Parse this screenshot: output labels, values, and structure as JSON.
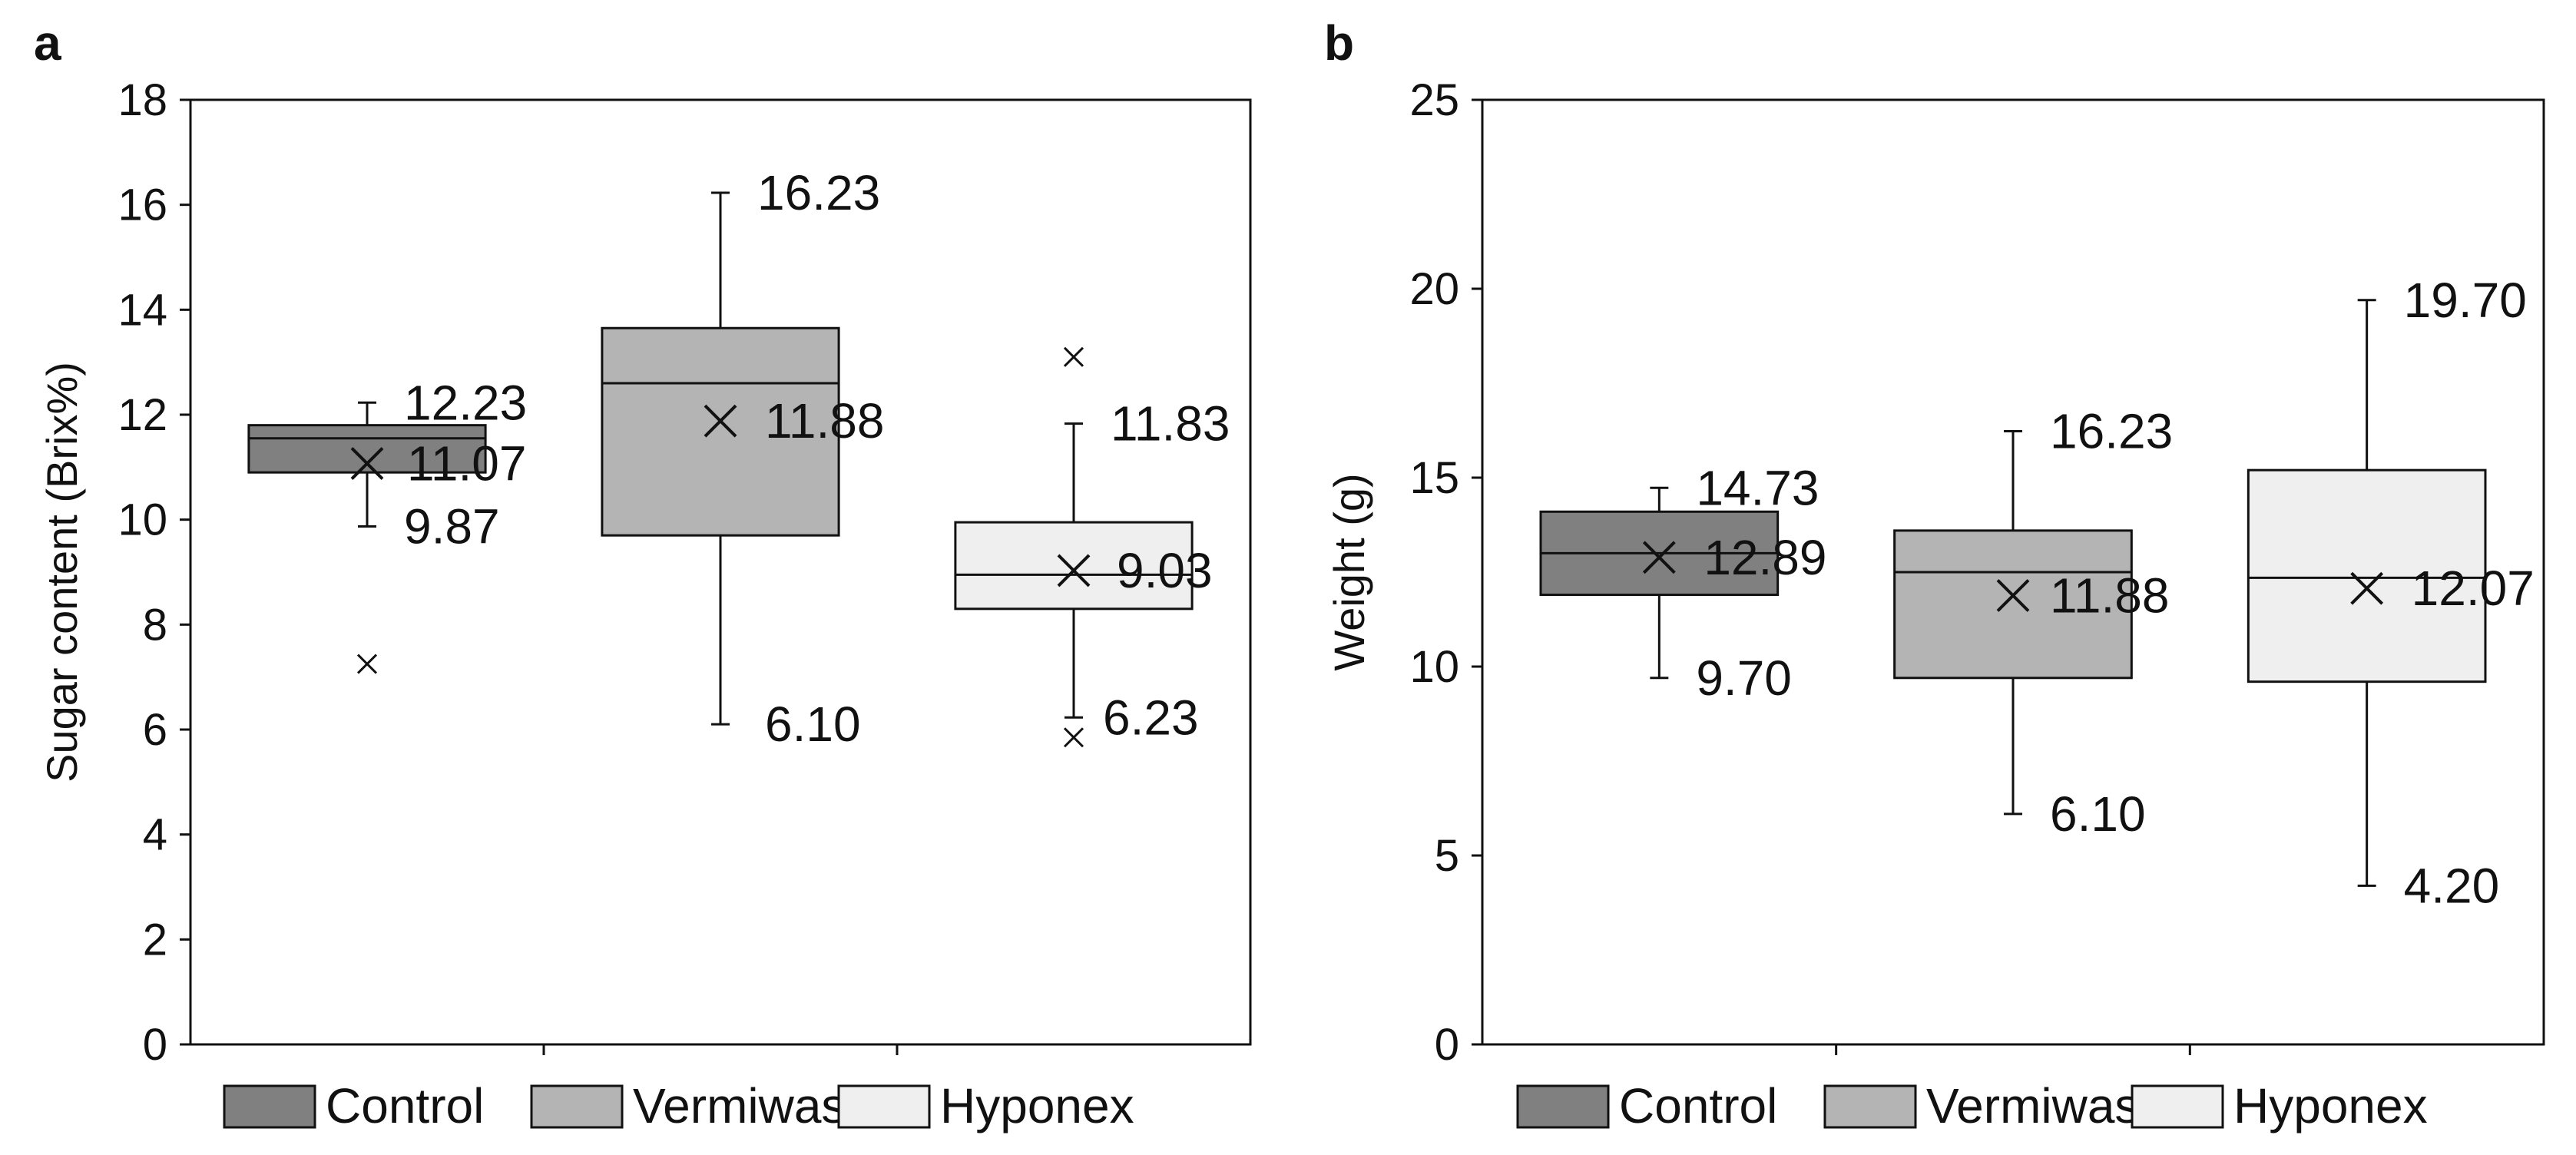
{
  "chart_data": [
    {
      "panel": "a",
      "type": "box",
      "title": "",
      "xlabel": "",
      "ylabel": "Sugar content (Brix%)",
      "ylim": [
        0,
        18
      ],
      "ytick_step": 2,
      "yticks": [
        "0",
        "2",
        "4",
        "6",
        "8",
        "10",
        "12",
        "14",
        "16",
        "18"
      ],
      "grid": false,
      "legend_position": "bottom",
      "series": [
        {
          "name": "Control",
          "color": "#808080",
          "min": 9.87,
          "q1": 10.9,
          "median": 11.55,
          "q3": 11.8,
          "max": 12.23,
          "mean": 11.07,
          "outliers": [
            7.25
          ],
          "labels": {
            "max": "12.23",
            "mean": "11.07",
            "min": "9.87"
          }
        },
        {
          "name": "Vermiwash",
          "color": "#b4b4b4",
          "min": 6.1,
          "q1": 9.7,
          "median": 12.6,
          "q3": 13.65,
          "max": 16.23,
          "mean": 11.88,
          "outliers": [],
          "labels": {
            "max": "16.23",
            "mean": "11.88",
            "min": "6.10"
          }
        },
        {
          "name": "Hyponex",
          "color": "#efefef",
          "min": 6.23,
          "q1": 8.3,
          "median": 8.95,
          "q3": 9.95,
          "max": 11.83,
          "mean": 9.03,
          "outliers": [
            13.1,
            5.85
          ],
          "labels": {
            "max": "11.83",
            "mean": "9.03",
            "min": "6.23"
          }
        }
      ]
    },
    {
      "panel": "b",
      "type": "box",
      "title": "",
      "xlabel": "",
      "ylabel": "Weight (g)",
      "ylim": [
        0,
        25
      ],
      "ytick_step": 5,
      "yticks": [
        "0",
        "5",
        "10",
        "15",
        "20",
        "25"
      ],
      "grid": false,
      "legend_position": "bottom",
      "series": [
        {
          "name": "Control",
          "color": "#808080",
          "min": 9.7,
          "q1": 11.9,
          "median": 13.0,
          "q3": 14.1,
          "max": 14.73,
          "mean": 12.89,
          "outliers": [],
          "labels": {
            "max": "14.73",
            "mean": "12.89",
            "min": "9.70"
          }
        },
        {
          "name": "Vermiwash",
          "color": "#b4b4b4",
          "min": 6.1,
          "q1": 9.7,
          "median": 12.5,
          "q3": 13.6,
          "max": 16.23,
          "mean": 11.88,
          "outliers": [],
          "labels": {
            "max": "16.23",
            "mean": "11.88",
            "min": "6.10"
          }
        },
        {
          "name": "Hyponex",
          "color": "#efefef",
          "min": 4.2,
          "q1": 9.6,
          "median": 12.35,
          "q3": 15.2,
          "max": 19.7,
          "mean": 12.07,
          "outliers": [],
          "labels": {
            "max": "19.70",
            "mean": "12.07",
            "min": "4.20"
          }
        }
      ]
    }
  ]
}
